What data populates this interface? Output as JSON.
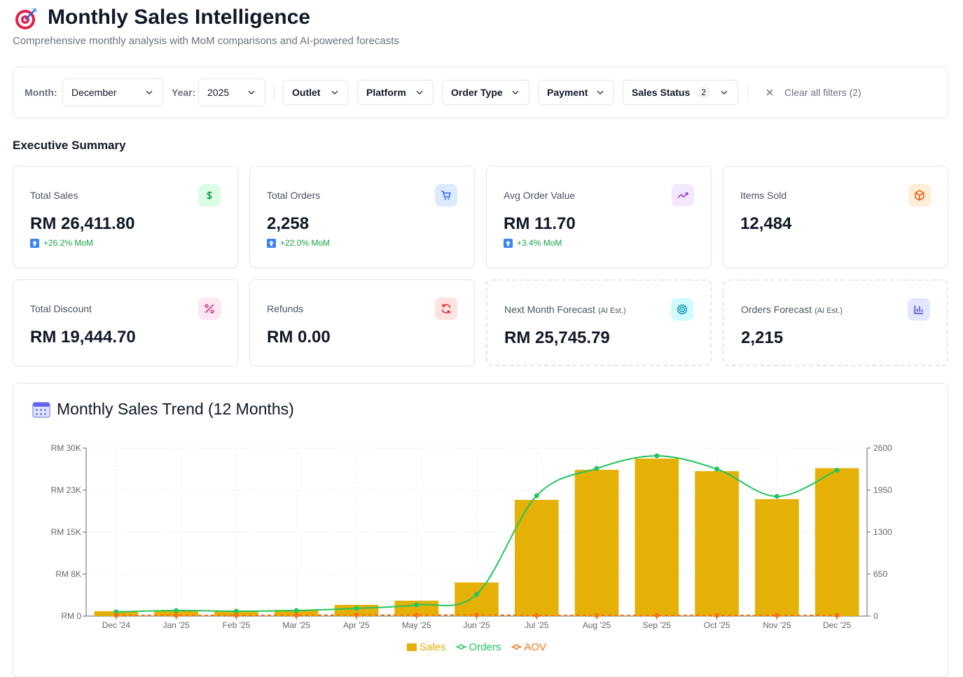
{
  "header": {
    "title": "Monthly Sales Intelligence",
    "subtitle": "Comprehensive monthly analysis with MoM comparisons and AI-powered forecasts"
  },
  "filters": {
    "month_label": "Month:",
    "month": "December",
    "year_label": "Year:",
    "year": "2025",
    "dropdowns": [
      "Outlet",
      "Platform",
      "Order Type",
      "Payment"
    ],
    "sales_status": {
      "label": "Sales Status",
      "count": 2
    },
    "clear": "Clear all filters (2)"
  },
  "summary": {
    "title": "Executive Summary",
    "cards": [
      {
        "label": "Total Sales",
        "value": "RM 26,411.80",
        "change": "+26.2% MoM"
      },
      {
        "label": "Total Orders",
        "value": "2,258",
        "change": "+22.0% MoM"
      },
      {
        "label": "Avg Order Value",
        "value": "RM 11.70",
        "change": "+3.4% MoM"
      },
      {
        "label": "Items Sold",
        "value": "12,484"
      },
      {
        "label": "Total Discount",
        "value": "RM 19,444.70"
      },
      {
        "label": "Refunds",
        "value": "RM 0.00"
      },
      {
        "label": "Next Month Forecast",
        "note": "(AI Est.)",
        "value": "RM 25,745.79"
      },
      {
        "label": "Orders Forecast",
        "note": "(AI Est.)",
        "value": "2,215"
      }
    ]
  },
  "chart_data": {
    "type": "bar-line",
    "title": "Monthly Sales Trend (12 Months)",
    "categories": [
      "Dec '24",
      "Jan '25",
      "Feb '25",
      "Mar '25",
      "Apr '25",
      "May '25",
      "Jun '25",
      "Jul '25",
      "Aug '25",
      "Sep '25",
      "Oct '25",
      "Nov '25",
      "Dec '25"
    ],
    "series": [
      {
        "name": "Sales",
        "type": "bar",
        "color": "#e5b106",
        "values": [
          875,
          1000,
          900,
          1100,
          2000,
          2750,
          6000,
          20750,
          26125,
          28125,
          25875,
          20875,
          26411.8
        ]
      },
      {
        "name": "Orders",
        "type": "line",
        "axis": "y2",
        "color": "#22c55e",
        "values": [
          65,
          87,
          76,
          87,
          119,
          173,
          336,
          1863,
          2285,
          2480,
          2275,
          1852,
          2258
        ]
      },
      {
        "name": "AOV",
        "type": "line",
        "axis": "y2",
        "dashed": true,
        "color": "#f97316",
        "values": [
          13.5,
          11.5,
          11.8,
          12.6,
          16.8,
          15.9,
          17.9,
          11.1,
          11.4,
          11.3,
          11.4,
          11.3,
          11.7
        ]
      }
    ],
    "ylim": [
      0,
      30000
    ],
    "yticks": [
      {
        "value": 0,
        "label": "RM 0"
      },
      {
        "value": 7500,
        "label": "RM 8K"
      },
      {
        "value": 15000,
        "label": "RM 15K"
      },
      {
        "value": 22500,
        "label": "RM 23K"
      },
      {
        "value": 30000,
        "label": "RM 30K"
      }
    ],
    "y2lim": [
      0,
      2600
    ],
    "y2ticks": [
      0,
      650,
      1300,
      1950,
      2600
    ],
    "grid": true,
    "legend": "bottom"
  }
}
